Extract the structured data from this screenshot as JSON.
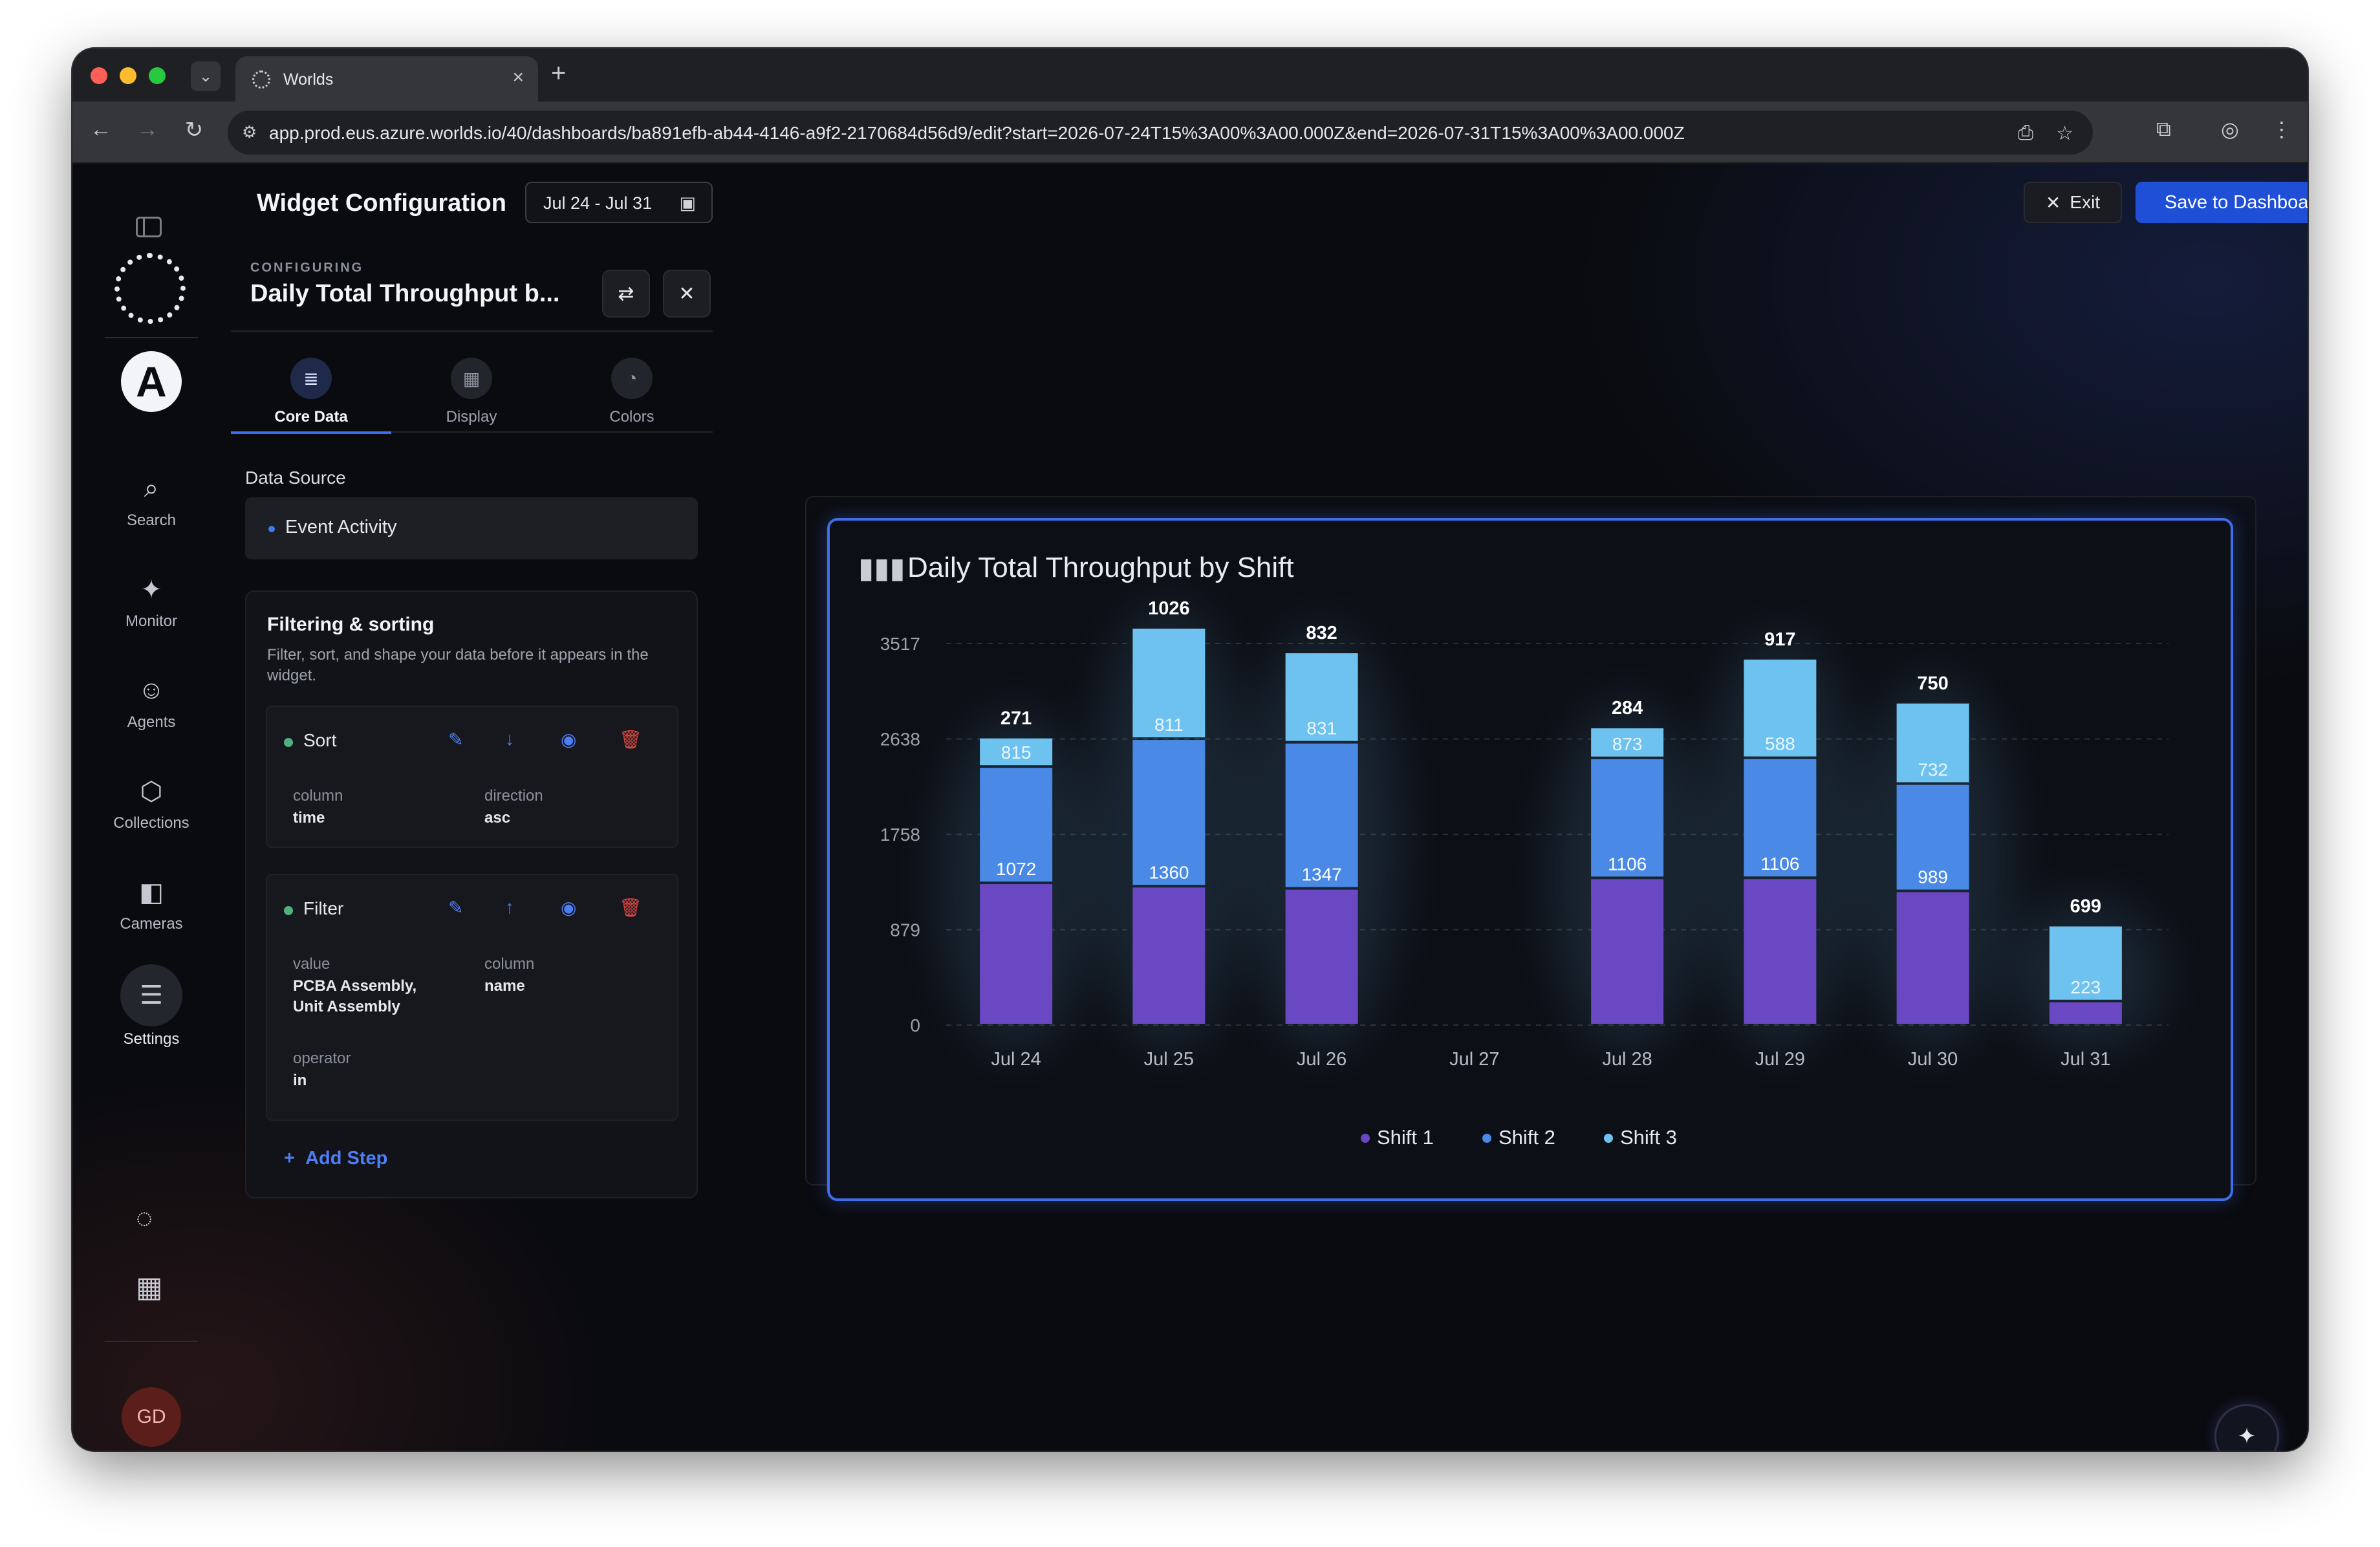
{
  "browser": {
    "tab_title": "Worlds",
    "url": "app.prod.eus.azure.worlds.io/40/dashboards/ba891efb-ab44-4146-a9f2-2170684d56d9/edit?start=2026-07-24T15%3A00%3A00.000Z&end=2026-07-31T15%3A00%3A00.000Z"
  },
  "rail": {
    "items": [
      {
        "label": "Search",
        "icon": "search-icon"
      },
      {
        "label": "Monitor",
        "icon": "monitor-icon"
      },
      {
        "label": "Agents",
        "icon": "agents-icon"
      },
      {
        "label": "Collections",
        "icon": "collections-icon"
      },
      {
        "label": "Cameras",
        "icon": "cameras-icon"
      },
      {
        "label": "Settings",
        "icon": "settings-icon"
      }
    ],
    "avatar": "GD"
  },
  "header": {
    "title": "Widget Configuration",
    "date_range": "Jul 24 - Jul 31",
    "exit_label": "Exit",
    "save_label": "Save to Dashboard"
  },
  "config": {
    "kicker": "CONFIGURING",
    "name": "Daily Total Throughput b...",
    "tabs": [
      {
        "label": "Core Data",
        "icon": "database-icon",
        "active": true
      },
      {
        "label": "Display",
        "icon": "grid-icon",
        "active": false
      },
      {
        "label": "Colors",
        "icon": "palette-icon",
        "active": false
      }
    ],
    "data_source_label": "Data Source",
    "data_source_value": "Event Activity",
    "filtering": {
      "title": "Filtering & sorting",
      "subtitle": "Filter, sort, and shape your data before it appears in the widget.",
      "steps": [
        {
          "name": "Sort",
          "fields": [
            {
              "key": "column",
              "value": "time"
            },
            {
              "key": "direction",
              "value": "asc"
            }
          ]
        },
        {
          "name": "Filter",
          "fields": [
            {
              "key": "value",
              "value": "PCBA Assembly, Unit Assembly"
            },
            {
              "key": "column",
              "value": "name"
            },
            {
              "key": "operator",
              "value": "in"
            }
          ]
        }
      ],
      "add_step_label": "Add Step"
    }
  },
  "widget": {
    "title": "Daily Total Throughput by Shift"
  },
  "colors": {
    "accent": "#1f4fd6",
    "shift1": "#6a48c4",
    "shift2": "#4a8ae6",
    "shift3": "#6ec2ef"
  },
  "chart_data": {
    "type": "bar",
    "stacked": true,
    "title": "Daily Total Throughput by Shift",
    "categories": [
      "Jul 24",
      "Jul 25",
      "Jul 26",
      "Jul 27",
      "Jul 28",
      "Jul 29",
      "Jul 30",
      "Jul 31"
    ],
    "series": [
      {
        "name": "Shift 1",
        "values": [
          1311,
          1280,
          1260,
          0,
          1357,
          1358,
          1237,
          222
        ]
      },
      {
        "name": "Shift 2",
        "values": [
          1072,
          1360,
          1347,
          0,
          1106,
          1106,
          989,
          0
        ]
      },
      {
        "name": "Shift 3",
        "values": [
          271,
          1026,
          832,
          0,
          284,
          917,
          750,
          699
        ]
      }
    ],
    "segment_labels": [
      {
        "category": "Jul 24",
        "shift2": "1072",
        "shift3_inner": "815",
        "top": "271"
      },
      {
        "category": "Jul 25",
        "shift2": "1360",
        "shift3_inner": "811",
        "top": "1026"
      },
      {
        "category": "Jul 26",
        "shift2": "1347",
        "shift3_inner": "831",
        "top": "832"
      },
      {
        "category": "Jul 28",
        "shift2": "1106",
        "shift3_inner": "873",
        "top": "284"
      },
      {
        "category": "Jul 29",
        "shift2": "1106",
        "shift3_inner": "588",
        "top": "917"
      },
      {
        "category": "Jul 30",
        "shift2": "989",
        "shift3_inner": "732",
        "top": "750"
      },
      {
        "category": "Jul 31",
        "shift2": "",
        "shift3_inner": "223",
        "top": "699"
      }
    ],
    "y_ticks": [
      "0",
      "879",
      "1758",
      "2638",
      "3517"
    ],
    "ylim": [
      0,
      3517
    ],
    "grid": true,
    "legend_position": "bottom-center"
  }
}
